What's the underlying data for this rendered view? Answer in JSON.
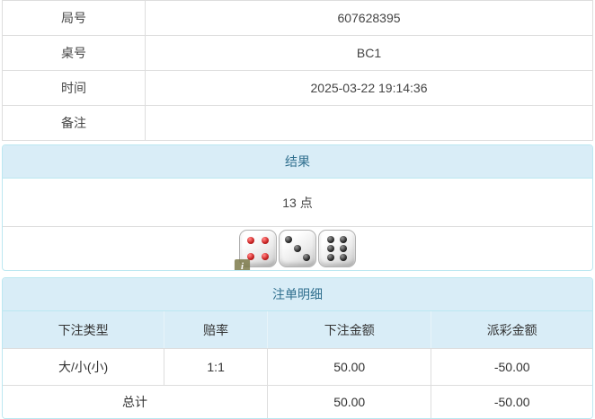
{
  "colors": {
    "panel_border": "#bce8f1",
    "panel_heading_bg": "#d9edf7",
    "panel_heading_text": "#31708f",
    "table_border": "#dddddd",
    "text": "#333333",
    "negative_text": "#e52b2b",
    "pip_red": "#c41f1f",
    "pip_black": "#222222"
  },
  "info_table": {
    "rows": [
      {
        "label": "局号",
        "value": "607628395"
      },
      {
        "label": "桌号",
        "value": "BC1"
      },
      {
        "label": "时间",
        "value": "2025-03-22 19:14:36"
      },
      {
        "label": "备注",
        "value": ""
      }
    ]
  },
  "result_panel": {
    "title": "结果",
    "points": "13 点",
    "dice": [
      {
        "value": 4,
        "color": "red"
      },
      {
        "value": 3,
        "color": "black"
      },
      {
        "value": 6,
        "color": "black"
      }
    ],
    "info_badge": "i"
  },
  "bet_panel": {
    "title": "注单明细",
    "columns": [
      "下注类型",
      "赔率",
      "下注金额",
      "派彩金额"
    ],
    "rows": [
      {
        "type": "大/小(小)",
        "odds": "1:1",
        "amount": "50.00",
        "payout": "-50.00"
      }
    ],
    "total": {
      "label": "总计",
      "amount": "50.00",
      "payout": "-50.00"
    }
  }
}
